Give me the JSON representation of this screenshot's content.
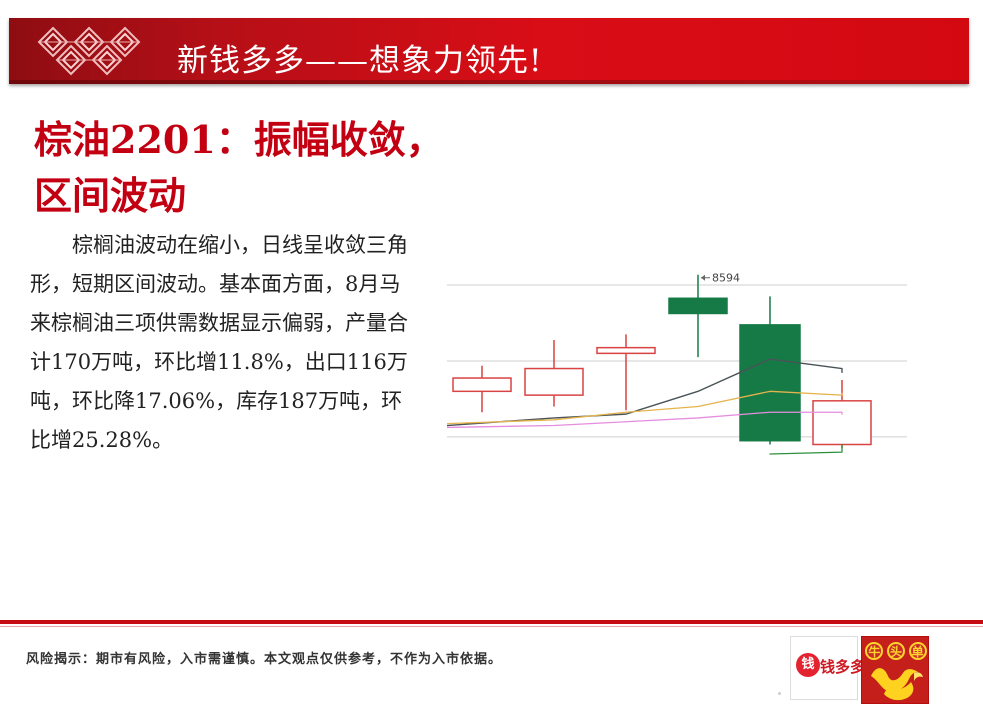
{
  "header": {
    "title": "新钱多多——想象力领先!"
  },
  "article": {
    "title": "棕油2201：振幅收敛，区间波动",
    "body": "棕榈油波动在缩小，日线呈收敛三角形，短期区间波动。基本面方面，8月马来棕榈油三项供需数据显示偏弱，产量合计170万吨，环比增11.8%，出口116万吨，环比降17.06%，库存187万吨，环比增25.28%。"
  },
  "footer": {
    "risk_text": "风险揭示：期市有风险，入市需谨慎。本文观点仅供参考，不作为入市依据。",
    "brand_left": "钱多多",
    "brand_left_icon": "钱",
    "brand_right_chars": [
      "牛",
      "头",
      "单"
    ]
  },
  "colors": {
    "header_red": "#d90d16",
    "title_red": "#c20012",
    "up_candle": "#d94343",
    "down_candle": "#167a47",
    "ma_dark": "#4a5458",
    "ma_yellow": "#e5b34d",
    "ma_pink": "#e58ddf",
    "ma_green": "#2f8f3d"
  },
  "chart_data": {
    "type": "candlestick",
    "title": "",
    "xlabel": "",
    "ylabel": "",
    "ylim": [
      7650,
      8640
    ],
    "gridlines": [
      8540,
      8140,
      7740
    ],
    "annotation": {
      "label": "8594",
      "value": 8594
    },
    "candles": [
      {
        "open": 8050,
        "close": 7980,
        "high": 8115,
        "low": 7870,
        "direction": "up"
      },
      {
        "open": 8100,
        "close": 7960,
        "high": 8250,
        "low": 7900,
        "direction": "up"
      },
      {
        "open": 8210,
        "close": 8180,
        "high": 8280,
        "low": 7880,
        "direction": "up"
      },
      {
        "open": 8470,
        "close": 8390,
        "high": 8594,
        "low": 8160,
        "direction": "down"
      },
      {
        "open": 8330,
        "close": 7720,
        "high": 8480,
        "low": 7700,
        "direction": "down"
      },
      {
        "open": 7930,
        "close": 7700,
        "high": 8040,
        "low": 7680,
        "direction": "up"
      }
    ],
    "series": [
      {
        "values": [
          7800,
          7840,
          7860,
          7980,
          8150,
          8100,
          8080
        ],
        "color": "#4a5458"
      },
      {
        "values": [
          7810,
          7830,
          7870,
          7900,
          7980,
          7960,
          7970
        ],
        "color": "#e5b34d"
      },
      {
        "values": [
          7790,
          7800,
          7820,
          7840,
          7870,
          7870,
          7860
        ],
        "color": "#e58ddf"
      },
      {
        "values": [
          null,
          null,
          null,
          null,
          7650,
          7660,
          7700
        ],
        "color": "#2f8f3d"
      }
    ]
  }
}
